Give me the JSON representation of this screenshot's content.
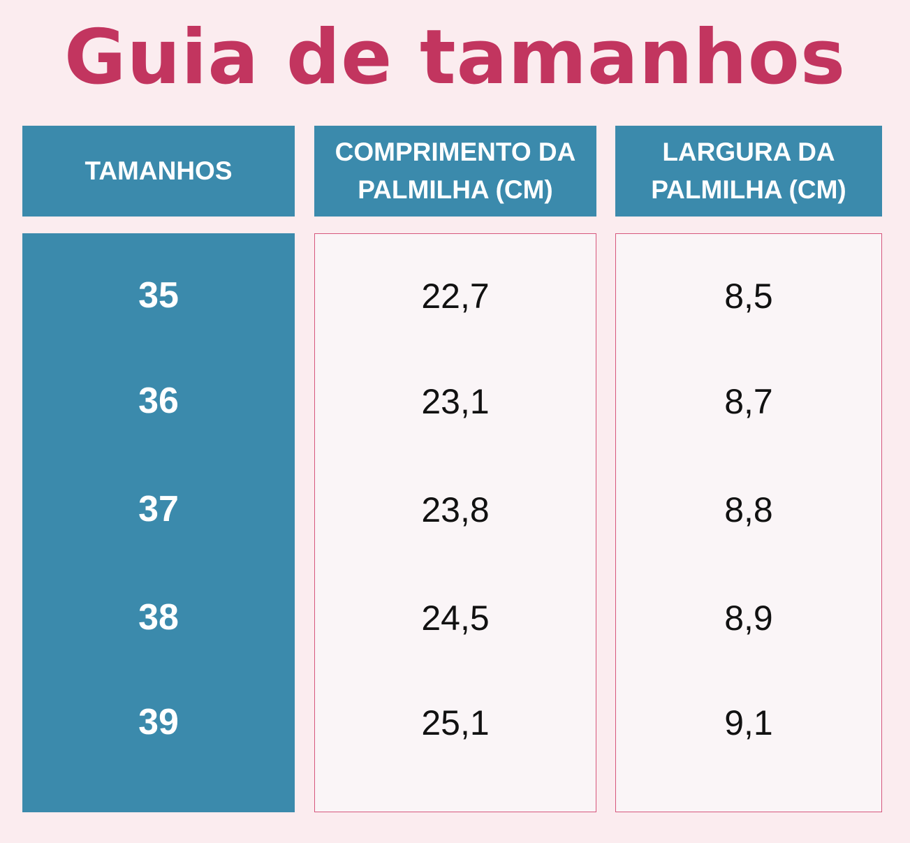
{
  "title": "Guia de tamanhos",
  "headers": {
    "size": [
      "TAMANHOS"
    ],
    "length": [
      "COMPRIMENTO DA",
      "PALMILHA (CM)"
    ],
    "width": [
      "LARGURA DA",
      "PALMILHA (CM)"
    ]
  },
  "rows": [
    {
      "size": "35",
      "length": "22,7",
      "width": "8,5"
    },
    {
      "size": "36",
      "length": "23,1",
      "width": "8,7"
    },
    {
      "size": "37",
      "length": "23,8",
      "width": "8,8"
    },
    {
      "size": "38",
      "length": "24,5",
      "width": "8,9"
    },
    {
      "size": "39",
      "length": "25,1",
      "width": "9,1"
    }
  ],
  "colors": {
    "background": "#fbecef",
    "title": "#c2355f",
    "header": "#3b8aac",
    "border": "#d6567c"
  }
}
